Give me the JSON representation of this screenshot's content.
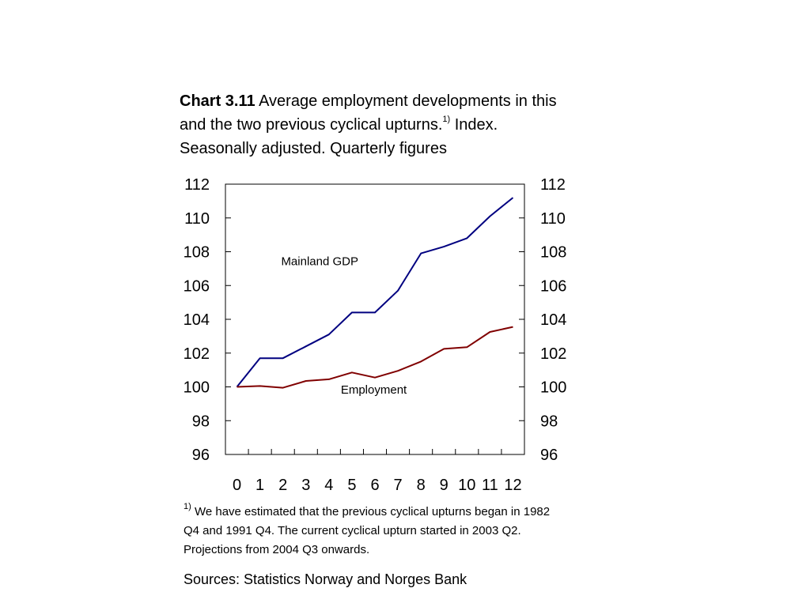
{
  "title": {
    "chart_number": "Chart 3.11",
    "text_part1": "Average employment developments in this and the two previous cyclical upturns.",
    "footnote_marker": "1)",
    "text_part2": "Index. Seasonally adjusted. Quarterly figures"
  },
  "footnote": {
    "marker": "1)",
    "text": "We have estimated that the previous cyclical upturns began in 1982 Q4 and 1991 Q4. The current cyclical upturn started in 2003 Q2. Projections from 2004 Q3 onwards."
  },
  "sources": "Sources: Statistics Norway and Norges Bank",
  "chart_data": {
    "type": "line",
    "x": [
      0,
      1,
      2,
      3,
      4,
      5,
      6,
      7,
      8,
      9,
      10,
      11,
      12
    ],
    "x_tick_labels": [
      "0",
      "1",
      "2",
      "3",
      "4",
      "5",
      "6",
      "7",
      "8",
      "9",
      "10",
      "11",
      "12"
    ],
    "y_ticks": [
      96,
      98,
      100,
      102,
      104,
      106,
      108,
      110,
      112
    ],
    "y_tick_labels": [
      "96",
      "98",
      "100",
      "102",
      "104",
      "106",
      "108",
      "110",
      "112"
    ],
    "ylim": [
      96,
      112
    ],
    "xlim": [
      -0.5,
      12.5
    ],
    "grid": false,
    "dual_y_axis": true,
    "series": [
      {
        "name": "Mainland GDP",
        "color": "#000080",
        "values": [
          100.0,
          101.7,
          101.7,
          102.4,
          103.1,
          104.4,
          104.4,
          105.7,
          107.9,
          108.3,
          108.8,
          110.1,
          111.2
        ]
      },
      {
        "name": "Employment",
        "color": "#800000",
        "values": [
          100.0,
          100.05,
          99.95,
          100.35,
          100.45,
          100.85,
          100.55,
          100.95,
          101.5,
          102.25,
          102.35,
          103.25,
          103.55
        ]
      }
    ],
    "annotations": [
      {
        "text": "Mainland GDP",
        "x": 3.6,
        "y": 107.2
      },
      {
        "text": "Employment",
        "x": 5.95,
        "y": 99.6
      }
    ]
  }
}
